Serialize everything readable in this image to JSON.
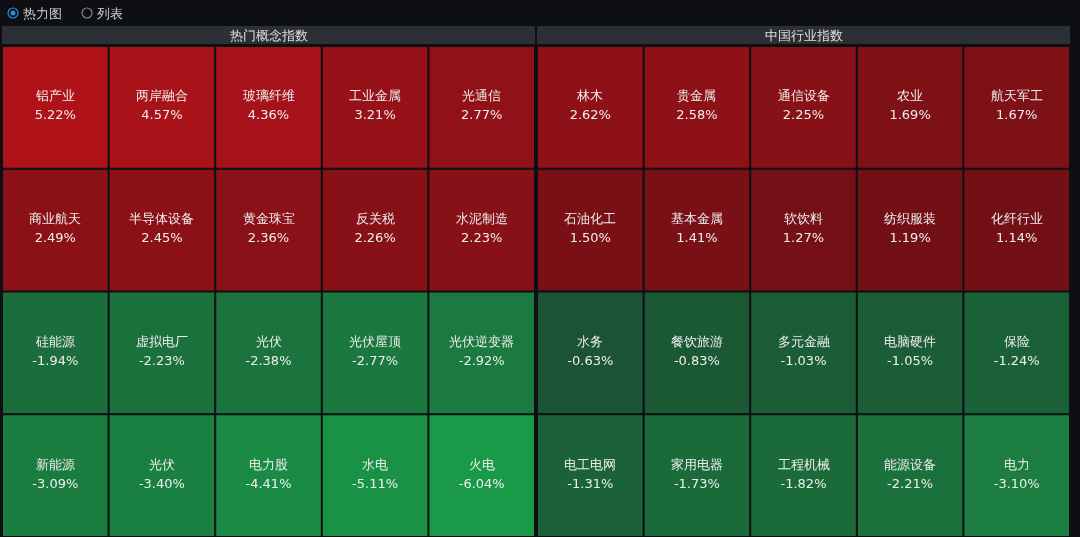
{
  "chart_data": [
    {
      "type": "other",
      "annotations": [
        "热力图",
        "列表"
      ]
    },
    {
      "type": "other",
      "title": "热门概念指数",
      "categories": [
        "铝产业",
        "两岸融合",
        "玻璃纤维",
        "工业金属",
        "光通信",
        "商业航天",
        "半导体设备",
        "黄金珠宝",
        "反关税",
        "水泥制造",
        "硅能源",
        "虚拟电厂",
        "光伏",
        "光伏屋顶",
        "光伏逆变器",
        "新能源",
        "光伏",
        "电力股",
        "水电",
        "火电"
      ],
      "values": [
        5.22,
        4.57,
        4.36,
        3.21,
        2.77,
        2.49,
        2.45,
        2.36,
        2.26,
        2.23,
        -1.94,
        -2.23,
        -2.38,
        -2.77,
        -2.92,
        -3.09,
        -3.4,
        -4.41,
        -5.11,
        -6.04
      ],
      "value_labels": [
        "5.22%",
        "4.57%",
        "4.36%",
        "3.21%",
        "2.77%",
        "2.49%",
        "2.45%",
        "2.36%",
        "2.26%",
        "2.23%",
        "-1.94%",
        "-2.23%",
        "-2.38%",
        "-2.77%",
        "-2.92%",
        "-3.09%",
        "-3.40%",
        "-4.41%",
        "-5.11%",
        "-6.04%"
      ]
    },
    {
      "type": "other",
      "title": "中国行业指数",
      "categories": [
        "林木",
        "贵金属",
        "通信设备",
        "农业",
        "航天军工",
        "石油化工",
        "基本金属",
        "软饮料",
        "纺织服装",
        "化纤行业",
        "水务",
        "餐饮旅游",
        "多元金融",
        "电脑硬件",
        "保险",
        "电工电网",
        "家用电器",
        "工程机械",
        "能源设备",
        "电力"
      ],
      "values": [
        2.62,
        2.58,
        2.25,
        1.69,
        1.67,
        1.5,
        1.41,
        1.27,
        1.19,
        1.14,
        -0.63,
        -0.83,
        -1.03,
        -1.05,
        -1.24,
        -1.31,
        -1.73,
        -1.82,
        -2.21,
        -3.1
      ],
      "value_labels": [
        "2.62%",
        "2.58%",
        "2.25%",
        "1.69%",
        "1.67%",
        "1.50%",
        "1.41%",
        "1.27%",
        "1.19%",
        "1.14%",
        "-0.63%",
        "-0.83%",
        "-1.03%",
        "-1.05%",
        "-1.24%",
        "-1.31%",
        "-1.73%",
        "-1.82%",
        "-2.21%",
        "-3.10%"
      ]
    }
  ]
}
